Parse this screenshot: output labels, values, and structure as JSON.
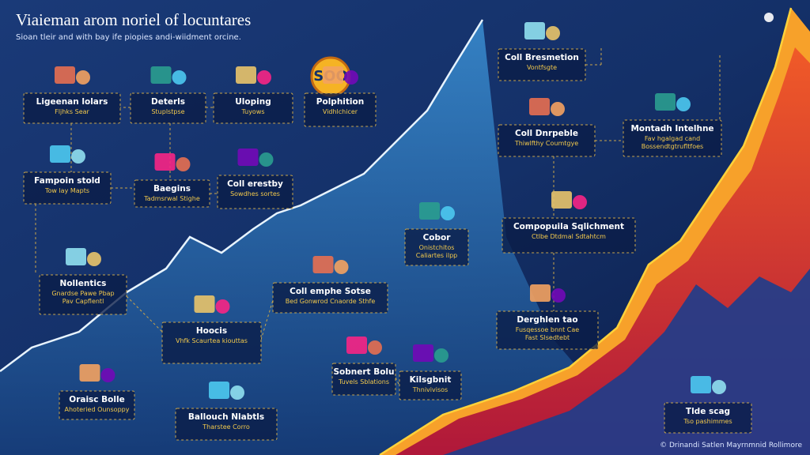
{
  "header": {
    "title": "Viaieman arom noriel of locuntares",
    "subtitle": "Sioan tleir and with bay ife piopies andi-wiidment orcine."
  },
  "badge": "SOO",
  "cards": [
    {
      "title": "Ligeenan lolars",
      "lines": [
        "Fljhks Sear"
      ]
    },
    {
      "title": "Deterls",
      "lines": [
        "Stuplstpse"
      ]
    },
    {
      "title": "Uloping",
      "lines": [
        "Tuyows"
      ]
    },
    {
      "title": "Polphition",
      "lines": [
        "Vidhlchicer"
      ]
    },
    {
      "title": "Fampoin stold",
      "lines": [
        "Tow lay Mapts"
      ]
    },
    {
      "title": "Baegins",
      "lines": [
        "Tadmsrwal Stighe"
      ]
    },
    {
      "title": "Coll erestby",
      "lines": [
        "Sowdhes sortes"
      ]
    },
    {
      "title": "Nollentics",
      "lines": [
        "Gnardse Pawe Pbap",
        "Pav Capflentl"
      ]
    },
    {
      "title": "Coll emphe Sotse",
      "lines": [
        "Bed Gonwrod Cnaorde Sthfe"
      ]
    },
    {
      "title": "Cobor",
      "lines": [
        "Onistchitos",
        "Caliartes ilpp"
      ]
    },
    {
      "title": "Hoocis",
      "lines": [
        "Vhfk Scaurtea kiouttas"
      ]
    },
    {
      "title": "Oraisc Bolle",
      "lines": [
        "Ahoteried Ounsoppy"
      ]
    },
    {
      "title": "Ballouch Nlabtls",
      "lines": [
        "Tharstee Corro"
      ]
    },
    {
      "title": "Sobnert Bolu",
      "lines": [
        "Tuvels Sblations"
      ]
    },
    {
      "title": "Kilsgbnit",
      "lines": [
        "Thnivivisos"
      ]
    },
    {
      "title": "Coll Bresmetion",
      "lines": [
        "Vontfsgte"
      ]
    },
    {
      "title": "Coll Dnrpeble",
      "lines": [
        "Thiwlfthy Coumtgye"
      ]
    },
    {
      "title": "Montadh Intelhne",
      "lines": [
        "Fav hgalgad cand",
        "Bossendtgtrufltfoes"
      ]
    },
    {
      "title": "Compopuila Sqlichment",
      "lines": [
        "Ctlbe Dtdmal Sdtahtcm"
      ]
    },
    {
      "title": "Derghlen tao",
      "lines": [
        "Fusqessoe bnnt Cae",
        "Fast Slsedtebt"
      ]
    },
    {
      "title": "Tlde scag",
      "lines": [
        "Tso pashimmes"
      ]
    }
  ],
  "footer": "© Drinandi Satlen Mayrnmnid Rollimore"
}
